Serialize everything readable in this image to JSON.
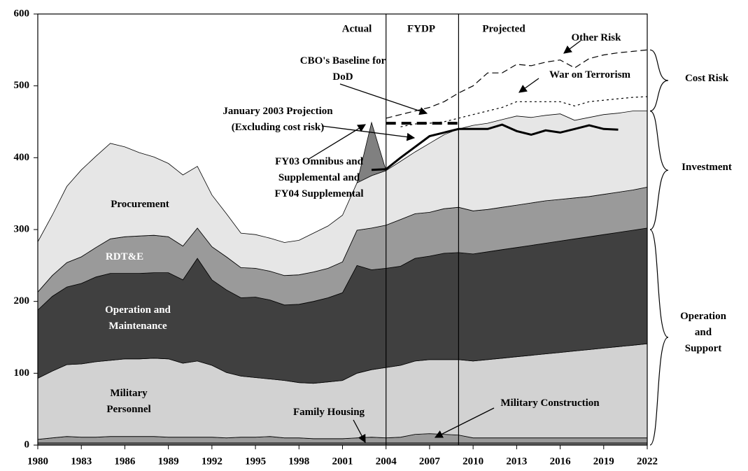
{
  "chart_data": {
    "type": "area",
    "xlim": [
      1980,
      2022
    ],
    "ylim": [
      0,
      600
    ],
    "xticks": [
      1980,
      1983,
      1986,
      1989,
      1992,
      1995,
      1998,
      2001,
      2004,
      2007,
      2010,
      2013,
      2016,
      2019,
      2022
    ],
    "yticks": [
      0,
      100,
      200,
      300,
      400,
      500,
      600
    ],
    "x": [
      1980,
      1981,
      1982,
      1983,
      1984,
      1985,
      1986,
      1987,
      1988,
      1989,
      1990,
      1991,
      1992,
      1993,
      1994,
      1995,
      1996,
      1997,
      1998,
      1999,
      2000,
      2001,
      2002,
      2003,
      2004,
      2005,
      2006,
      2007,
      2008,
      2009,
      2010,
      2011,
      2012,
      2013,
      2014,
      2015,
      2016,
      2017,
      2018,
      2019,
      2020,
      2021,
      2022
    ],
    "series": [
      {
        "name": "Family Housing",
        "style": "area",
        "color": "#6e6e6e",
        "values": [
          3,
          3,
          3,
          3,
          3,
          3,
          3,
          3,
          3,
          3,
          3,
          3,
          3,
          3,
          3,
          3,
          3,
          3,
          3,
          3,
          3,
          3,
          3,
          3,
          3,
          3,
          3,
          3,
          3,
          3,
          3,
          3,
          3,
          3,
          3,
          3,
          3,
          3,
          3,
          3,
          3,
          3,
          3
        ]
      },
      {
        "name": "Military Construction",
        "style": "area",
        "color": "#9a9a9a",
        "values": [
          5,
          7,
          9,
          8,
          8,
          9,
          9,
          9,
          9,
          8,
          8,
          8,
          8,
          7,
          8,
          8,
          9,
          7,
          7,
          6,
          6,
          6,
          7,
          8,
          7,
          8,
          12,
          13,
          12,
          11,
          7,
          7,
          7,
          7,
          7,
          7,
          7,
          7,
          7,
          7,
          7,
          7,
          7
        ]
      },
      {
        "name": "Military Personnel",
        "style": "area",
        "color": "#d2d2d2",
        "values": [
          85,
          93,
          100,
          102,
          105,
          106,
          108,
          108,
          109,
          109,
          103,
          106,
          100,
          91,
          85,
          83,
          80,
          80,
          77,
          77,
          79,
          81,
          90,
          94,
          98,
          100,
          102,
          103,
          104,
          105,
          107,
          109,
          111,
          113,
          115,
          117,
          119,
          121,
          123,
          125,
          127,
          129,
          131
        ]
      },
      {
        "name": "Operation and Maintenance",
        "style": "area",
        "color": "#404040",
        "values": [
          95,
          104,
          108,
          112,
          118,
          121,
          119,
          119,
          119,
          120,
          116,
          143,
          119,
          115,
          109,
          112,
          110,
          105,
          109,
          114,
          117,
          122,
          150,
          139,
          138,
          138,
          143,
          144,
          148,
          149,
          149,
          150,
          151,
          152,
          153,
          154,
          155,
          156,
          157,
          158,
          159,
          160,
          161
        ]
      },
      {
        "name": "RDT&E",
        "style": "area",
        "color": "#9a9a9a",
        "values": [
          25,
          29,
          34,
          37,
          41,
          48,
          51,
          52,
          52,
          50,
          47,
          42,
          46,
          46,
          42,
          40,
          40,
          41,
          41,
          41,
          41,
          43,
          49,
          58,
          60,
          65,
          62,
          61,
          62,
          63,
          60,
          59,
          59,
          59,
          59,
          59,
          58,
          57,
          56,
          56,
          56,
          56,
          57
        ]
      },
      {
        "name": "Procurement",
        "style": "area",
        "color": "#e6e6e6",
        "values": [
          70,
          84,
          106,
          121,
          127,
          133,
          125,
          116,
          109,
          102,
          99,
          86,
          72,
          60,
          48,
          47,
          46,
          46,
          48,
          54,
          59,
          65,
          66,
          73,
          76,
          81,
          86,
          96,
          103,
          109,
          119,
          120,
          122,
          124,
          119,
          119,
          119,
          108,
          110,
          111,
          110,
          110,
          106
        ]
      },
      {
        "name": "FY03 Omnibus and Supplemental and FY04 Supplemental",
        "style": "area",
        "color": "#808080",
        "values": [
          null,
          null,
          null,
          null,
          null,
          null,
          null,
          null,
          null,
          null,
          null,
          null,
          null,
          null,
          null,
          null,
          null,
          null,
          null,
          null,
          null,
          null,
          0,
          74,
          0,
          null,
          null,
          null,
          null,
          null,
          null,
          null,
          null,
          null,
          null,
          null,
          null,
          null,
          null,
          null,
          null,
          null,
          null
        ]
      },
      {
        "name": "January 2003 Projection (Excluding cost risk)",
        "style": "solid",
        "color": "#000000",
        "values": [
          null,
          null,
          null,
          null,
          null,
          null,
          null,
          null,
          null,
          null,
          null,
          null,
          null,
          null,
          null,
          null,
          null,
          null,
          null,
          null,
          null,
          null,
          null,
          383,
          384,
          400,
          415,
          430,
          435,
          440,
          440,
          440,
          446,
          437,
          432,
          438,
          435,
          440,
          445,
          440,
          439,
          null,
          null
        ]
      },
      {
        "name": "CBO's Baseline for DoD",
        "style": "thick-dashed",
        "color": "#000000",
        "values": [
          null,
          null,
          null,
          null,
          null,
          null,
          null,
          null,
          null,
          null,
          null,
          null,
          null,
          null,
          null,
          null,
          null,
          null,
          null,
          null,
          null,
          null,
          null,
          null,
          448,
          448,
          448,
          448,
          448,
          448,
          null,
          null,
          null,
          null,
          null,
          null,
          null,
          null,
          null,
          null,
          null,
          null,
          null
        ]
      },
      {
        "name": "War on Terrorism",
        "style": "dotted",
        "color": "#000000",
        "values": [
          null,
          null,
          null,
          null,
          null,
          null,
          null,
          null,
          null,
          null,
          null,
          null,
          null,
          null,
          null,
          null,
          null,
          null,
          null,
          null,
          null,
          null,
          null,
          null,
          null,
          443,
          447,
          448,
          450,
          455,
          460,
          465,
          470,
          478,
          478,
          478,
          478,
          472,
          478,
          480,
          482,
          484,
          485
        ]
      },
      {
        "name": "Other Risk",
        "style": "dashed",
        "color": "#000000",
        "values": [
          null,
          null,
          null,
          null,
          null,
          null,
          null,
          null,
          null,
          null,
          null,
          null,
          null,
          null,
          null,
          null,
          null,
          null,
          null,
          null,
          null,
          null,
          null,
          null,
          455,
          460,
          465,
          470,
          478,
          490,
          500,
          518,
          518,
          530,
          528,
          533,
          536,
          525,
          538,
          543,
          546,
          548,
          550
        ]
      }
    ],
    "dividers": [
      2004,
      2009
    ],
    "periods": [
      "Actual",
      "FYDP",
      "Projected"
    ],
    "brackets": [
      {
        "label": "Cost Risk",
        "from": 465,
        "to": 550
      },
      {
        "label": "Investment",
        "from": 300,
        "to": 465
      },
      {
        "label": "Operation and Support",
        "from": 0,
        "to": 300
      }
    ]
  }
}
